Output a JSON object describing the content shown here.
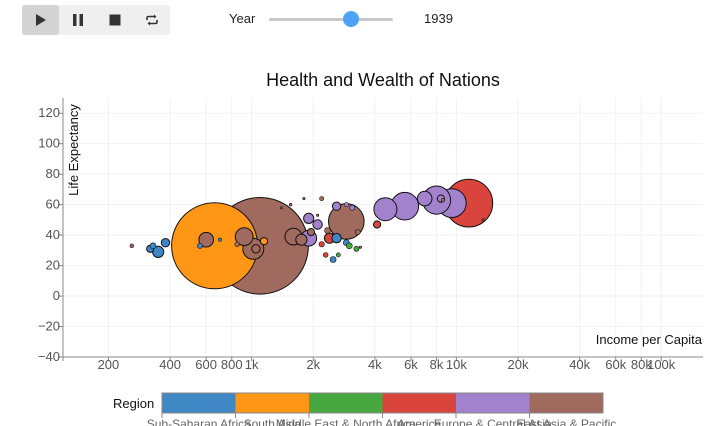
{
  "controls": {
    "play_icon": "play-icon",
    "pause_icon": "pause-icon",
    "stop_icon": "stop-icon",
    "repeat_icon": "repeat-icon",
    "year_label": "Year",
    "year_value": "1939",
    "slider": {
      "min": 1800,
      "max": 2009,
      "value": 1939
    },
    "slider_color": "#4da3f5"
  },
  "chart_data": {
    "type": "scatter",
    "title": "Health and Wealth of Nations",
    "xlabel": "Income per Capita",
    "ylabel": "Life Expectancy",
    "xscale": "log",
    "xlim": [
      120,
      160000
    ],
    "ylim": [
      -40,
      130
    ],
    "xticks": [
      {
        "value": 200,
        "label": "200"
      },
      {
        "value": 400,
        "label": "400"
      },
      {
        "value": 600,
        "label": "600"
      },
      {
        "value": 800,
        "label": "800"
      },
      {
        "value": 1000,
        "label": "1k"
      },
      {
        "value": 2000,
        "label": "2k"
      },
      {
        "value": 4000,
        "label": "4k"
      },
      {
        "value": 6000,
        "label": "6k"
      },
      {
        "value": 8000,
        "label": "8k"
      },
      {
        "value": 10000,
        "label": "10k"
      },
      {
        "value": 20000,
        "label": "20k"
      },
      {
        "value": 40000,
        "label": "40k"
      },
      {
        "value": 60000,
        "label": "60k"
      },
      {
        "value": 80000,
        "label": "80k"
      },
      {
        "value": 100000,
        "label": "100k"
      }
    ],
    "yticks": [
      -40,
      -20,
      0,
      20,
      40,
      60,
      80,
      100,
      120
    ],
    "grid": true,
    "legend_title": "Region",
    "regions": [
      {
        "name": "Sub-Saharan Africa",
        "color": "#3f88c5"
      },
      {
        "name": "South Asia",
        "color": "#ff9616"
      },
      {
        "name": "Middle East & North Africa",
        "color": "#48a840"
      },
      {
        "name": "America",
        "color": "#d9443c"
      },
      {
        "name": "Europe & Central Asia",
        "color": "#a281cd"
      },
      {
        "name": "East Asia & Pacific",
        "color": "#a06a5e"
      }
    ],
    "series": [
      {
        "region": "Sub-Saharan Africa",
        "points": [
          {
            "x": 320,
            "y": 31,
            "pop": 3
          },
          {
            "x": 350,
            "y": 29,
            "pop": 7
          },
          {
            "x": 380,
            "y": 35,
            "pop": 4
          },
          {
            "x": 330,
            "y": 33,
            "pop": 2
          },
          {
            "x": 2600,
            "y": 38,
            "pop": 5
          },
          {
            "x": 2900,
            "y": 35,
            "pop": 2
          },
          {
            "x": 2500,
            "y": 24,
            "pop": 2
          },
          {
            "x": 560,
            "y": 33,
            "pop": 1.5
          },
          {
            "x": 700,
            "y": 37,
            "pop": 0.6
          }
        ]
      },
      {
        "region": "South Asia",
        "points": [
          {
            "x": 660,
            "y": 33,
            "pop": 420
          },
          {
            "x": 1150,
            "y": 36,
            "pop": 3
          }
        ]
      },
      {
        "region": "Middle East & North Africa",
        "points": [
          {
            "x": 3000,
            "y": 33,
            "pop": 2
          },
          {
            "x": 3250,
            "y": 31,
            "pop": 1.5
          },
          {
            "x": 2650,
            "y": 27,
            "pop": 1
          }
        ]
      },
      {
        "region": "America",
        "points": [
          {
            "x": 11500,
            "y": 61,
            "pop": 130
          },
          {
            "x": 2400,
            "y": 38,
            "pop": 6
          },
          {
            "x": 2300,
            "y": 27,
            "pop": 1.3
          },
          {
            "x": 2200,
            "y": 34,
            "pop": 1.6
          },
          {
            "x": 4100,
            "y": 47,
            "pop": 3
          }
        ]
      },
      {
        "region": "Europe & Central Asia",
        "points": [
          {
            "x": 8000,
            "y": 63,
            "pop": 45
          },
          {
            "x": 9500,
            "y": 61,
            "pop": 47
          },
          {
            "x": 5600,
            "y": 59,
            "pop": 43
          },
          {
            "x": 7000,
            "y": 64,
            "pop": 12
          },
          {
            "x": 4500,
            "y": 57,
            "pop": 30
          },
          {
            "x": 1900,
            "y": 51,
            "pop": 6
          },
          {
            "x": 2600,
            "y": 59,
            "pop": 4
          },
          {
            "x": 2100,
            "y": 47,
            "pop": 5
          },
          {
            "x": 1900,
            "y": 38,
            "pop": 14
          },
          {
            "x": 2900,
            "y": 60,
            "pop": 1
          },
          {
            "x": 3100,
            "y": 58,
            "pop": 1.5
          },
          {
            "x": 8400,
            "y": 64,
            "pop": 3
          }
        ]
      },
      {
        "region": "East Asia & Pacific",
        "points": [
          {
            "x": 1100,
            "y": 33,
            "pop": 530
          },
          {
            "x": 2900,
            "y": 49,
            "pop": 72
          },
          {
            "x": 920,
            "y": 39,
            "pop": 18
          },
          {
            "x": 1020,
            "y": 31,
            "pop": 25
          },
          {
            "x": 1050,
            "y": 31,
            "pop": 4
          },
          {
            "x": 1600,
            "y": 39,
            "pop": 16
          },
          {
            "x": 1750,
            "y": 37,
            "pop": 7
          },
          {
            "x": 1950,
            "y": 42,
            "pop": 3
          },
          {
            "x": 2350,
            "y": 43,
            "pop": 2
          },
          {
            "x": 1550,
            "y": 60,
            "pop": 0.4
          },
          {
            "x": 1800,
            "y": 64,
            "pop": 0.2
          },
          {
            "x": 600,
            "y": 37,
            "pop": 12
          },
          {
            "x": 850,
            "y": 34,
            "pop": 1.2
          },
          {
            "x": 3300,
            "y": 42,
            "pop": 1.5
          },
          {
            "x": 2200,
            "y": 64,
            "pop": 1
          },
          {
            "x": 1400,
            "y": 58,
            "pop": 0.2
          },
          {
            "x": 2100,
            "y": 53,
            "pop": 0.3
          },
          {
            "x": 8600,
            "y": 63,
            "pop": 0.7
          },
          {
            "x": 260,
            "y": 33,
            "pop": 0.8
          },
          {
            "x": 3400,
            "y": 32,
            "pop": 0.2
          },
          {
            "x": 13500,
            "y": 50,
            "pop": 0.2
          }
        ]
      }
    ]
  }
}
